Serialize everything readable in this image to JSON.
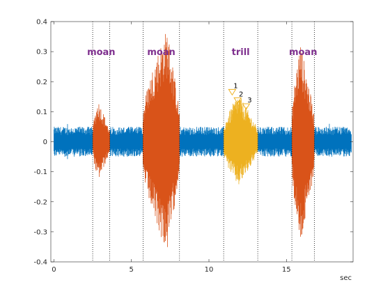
{
  "chart_data": {
    "type": "line",
    "xlabel": "sec",
    "ylabel": "",
    "xlim": [
      -0.2,
      19.3
    ],
    "ylim": [
      -0.4,
      0.4
    ],
    "xticks": [
      0,
      5,
      10,
      15
    ],
    "yticks": [
      -0.4,
      -0.3,
      -0.2,
      -0.1,
      0,
      0.1,
      0.2,
      0.3,
      0.4
    ],
    "ytick_labels": [
      "-0.4",
      "-0.3",
      "-0.2",
      "-0.1",
      "0",
      "0.1",
      "0.2",
      "0.3",
      "0.4"
    ],
    "grid": false,
    "colors": {
      "background_waveform": "#0072bd",
      "moan": "#d95319",
      "trill": "#edb120",
      "label": "#7e2f8e",
      "marker": "#edb120"
    },
    "signal": {
      "duration": 19.2,
      "noise_amplitude": 0.05
    },
    "segments": [
      {
        "label": "moan",
        "start": 2.5,
        "end": 3.6,
        "peak": 0.14,
        "trough": -0.13,
        "peak_time": 2.85,
        "color_key": "moan"
      },
      {
        "label": "moan",
        "start": 5.75,
        "end": 8.1,
        "peak": 0.38,
        "trough": -0.37,
        "peak_time": 7.3,
        "color_key": "moan"
      },
      {
        "label": "trill",
        "start": 10.95,
        "end": 13.15,
        "peak": 0.16,
        "trough": -0.15,
        "peak_time": 11.9,
        "color_key": "trill"
      },
      {
        "label": "moan",
        "start": 15.35,
        "end": 16.8,
        "peak": 0.33,
        "trough": -0.35,
        "peak_time": 15.9,
        "color_key": "moan"
      }
    ],
    "segment_label_y": 0.3,
    "markers": [
      {
        "label": "1",
        "x": 11.5,
        "y": 0.165
      },
      {
        "label": "2",
        "x": 11.85,
        "y": 0.137
      },
      {
        "label": "3",
        "x": 12.4,
        "y": 0.117
      }
    ]
  }
}
